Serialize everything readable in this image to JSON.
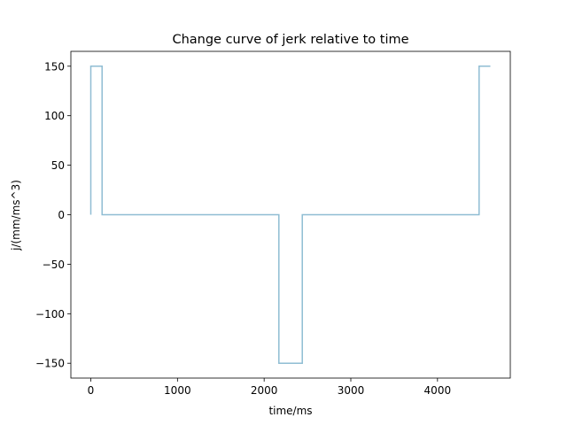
{
  "chart_data": {
    "type": "line",
    "title": "Change curve of jerk relative to time",
    "xlabel": "time/ms",
    "ylabel": "j/(mm/ms^3)",
    "xlim": [
      -230,
      4840
    ],
    "ylim": [
      -165,
      165
    ],
    "xticks": [
      0,
      1000,
      2000,
      3000,
      4000
    ],
    "xtick_labels": [
      "0",
      "1000",
      "2000",
      "3000",
      "4000"
    ],
    "yticks": [
      -150,
      -100,
      -50,
      0,
      50,
      100,
      150
    ],
    "ytick_labels": [
      "−150",
      "−100",
      "−50",
      "0",
      "50",
      "100",
      "150"
    ],
    "grid": false,
    "series": [
      {
        "color": "#8fbdd3",
        "x": [
          0,
          0,
          130,
          130,
          2170,
          2170,
          2440,
          2440,
          4480,
          4480,
          4610
        ],
        "y": [
          0,
          150,
          150,
          0,
          0,
          -150,
          -150,
          0,
          0,
          150,
          150
        ]
      }
    ]
  }
}
